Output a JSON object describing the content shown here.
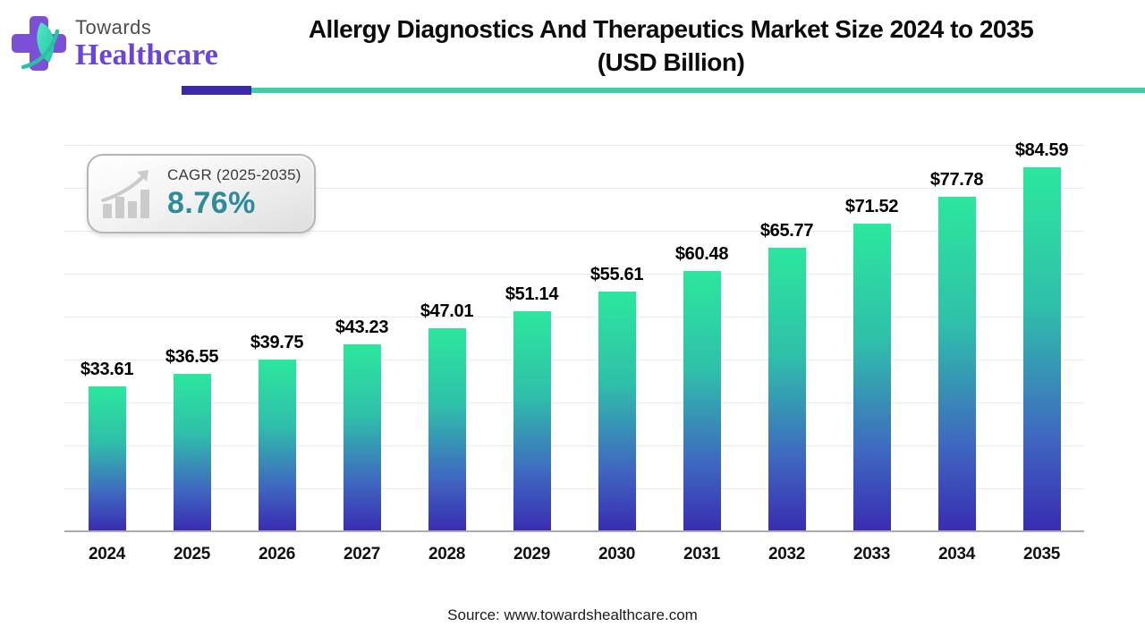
{
  "header": {
    "logo_line1": "Towards",
    "logo_line2": "Healthcare",
    "title_line1": "Allergy Diagnostics And Therapeutics Market Size 2024 to 2035",
    "title_line2": "(USD Billion)"
  },
  "cagr": {
    "label": "CAGR (2025-2035)",
    "value": "8.76%"
  },
  "chart_data": {
    "type": "bar",
    "title": "Allergy Diagnostics And Therapeutics Market Size 2024 to 2035 (USD Billion)",
    "categories": [
      "2024",
      "2025",
      "2026",
      "2027",
      "2028",
      "2029",
      "2030",
      "2031",
      "2032",
      "2033",
      "2034",
      "2035"
    ],
    "values": [
      33.61,
      36.55,
      39.75,
      43.23,
      47.01,
      51.14,
      55.61,
      60.48,
      65.77,
      71.52,
      77.78,
      84.59
    ],
    "value_prefix": "$",
    "xlabel": "",
    "ylabel": "",
    "ylim": [
      0,
      95
    ],
    "grid_step": 10,
    "grid_max": 90,
    "grid_on": true,
    "legend_position": "none",
    "bar_gradient_top": "#2ce79d",
    "bar_gradient_bottom": "#392db2"
  },
  "footer": {
    "source": "Source: www.towardshealthcare.com"
  },
  "colors": {
    "divider_purple": "#3a28a8",
    "divider_teal": "#3ecba5",
    "cagr_value_teal": "#2e8b99",
    "logo_purple": "#7b4fd6",
    "logo_leaf_teal": "#35d9b5",
    "title_text": "#0c0c0c"
  }
}
